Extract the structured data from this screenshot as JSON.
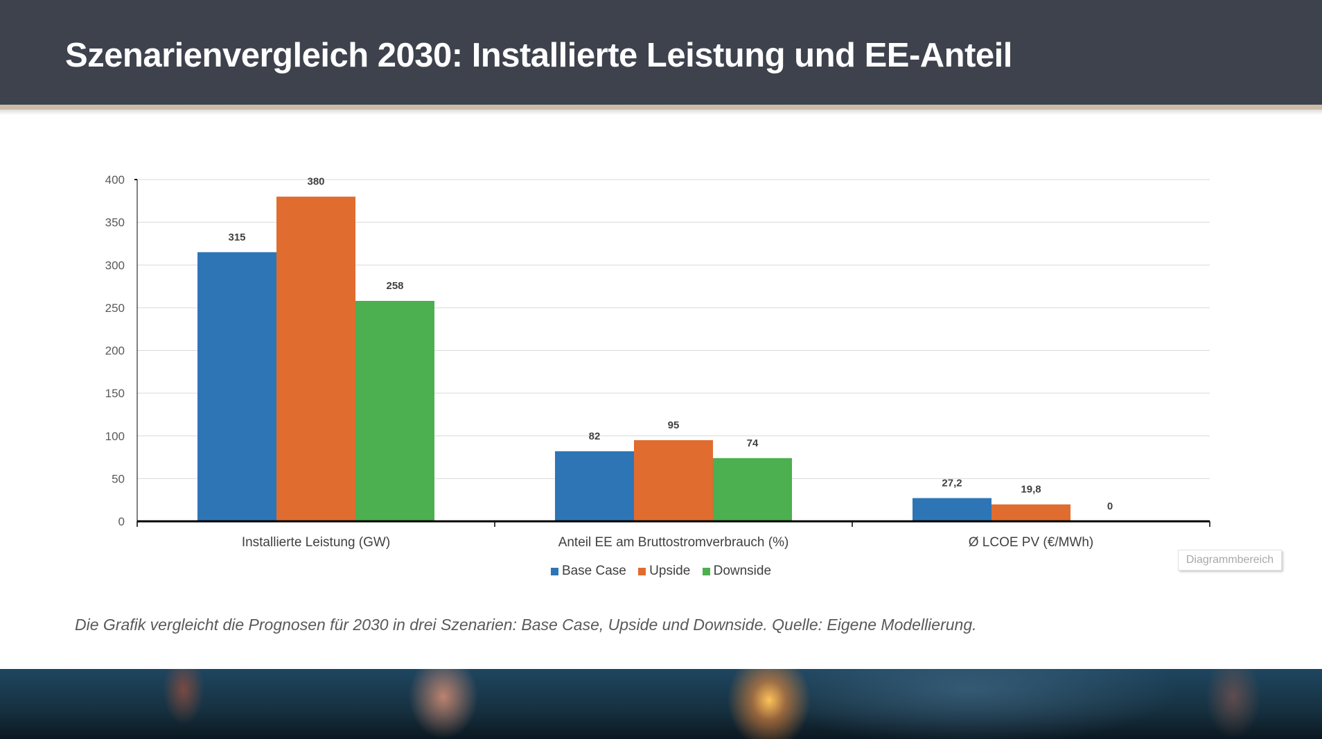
{
  "header": {
    "title": "Szenarienvergleich 2030: Installierte Leistung und EE-Anteil"
  },
  "chart_data": {
    "type": "bar",
    "categories": [
      "Installierte Leistung (GW)",
      "Anteil EE am Bruttostromverbrauch (%)",
      "Ø LCOE PV (€/MWh)"
    ],
    "series": [
      {
        "name": "Base Case",
        "color": "#2e75b6",
        "values": [
          315,
          82,
          27.2
        ],
        "labels": [
          "315",
          "82",
          "27,2"
        ]
      },
      {
        "name": "Upside",
        "color": "#e06c2f",
        "values": [
          380,
          95,
          19.8
        ],
        "labels": [
          "380",
          "95",
          "19,8"
        ]
      },
      {
        "name": "Downside",
        "color": "#4caf50",
        "values": [
          258,
          74,
          0
        ],
        "labels": [
          "258",
          "74",
          "0"
        ]
      }
    ],
    "ylim": [
      0,
      400
    ],
    "yticks": [
      "0",
      "50",
      "100",
      "150",
      "200",
      "250",
      "300",
      "350",
      "400"
    ],
    "grid": true,
    "legend_position": "bottom"
  },
  "chart_area_tooltip": "Diagrammbereich",
  "caption": "Die Grafik vergleicht die Prognosen für 2030 in drei Szenarien: Base Case, Upside und Downside. Quelle: Eigene Modellierung."
}
